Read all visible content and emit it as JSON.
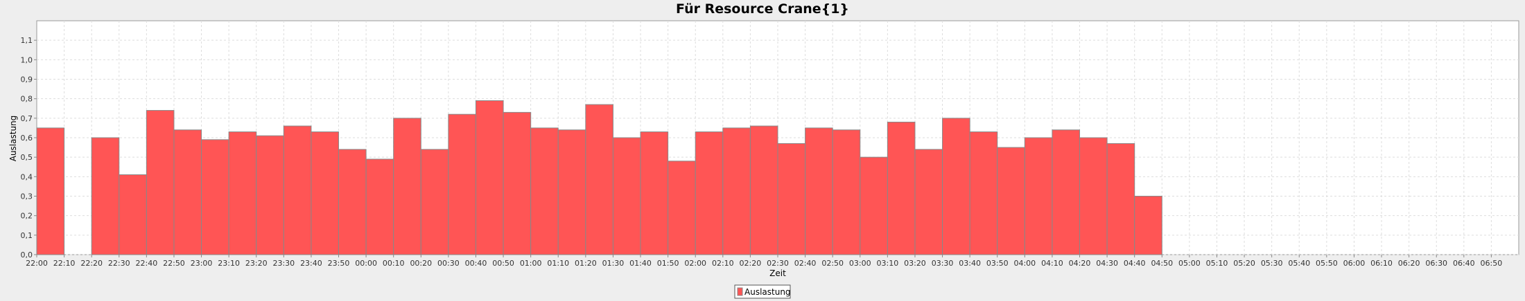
{
  "chart_data": {
    "type": "bar",
    "title": "Für Resource Crane{1}",
    "xlabel": "Zeit",
    "ylabel": "Auslastung",
    "ylim": [
      0,
      1.2
    ],
    "yticks": [
      "0,0",
      "0,1",
      "0,2",
      "0,3",
      "0,4",
      "0,5",
      "0,6",
      "0,7",
      "0,8",
      "0,9",
      "1,0",
      "1,1"
    ],
    "grid": true,
    "legend_placement": "bottom-center",
    "colors": {
      "bar": "#ff5555",
      "bar_edge": "#888888",
      "plot_bg": "#ffffff",
      "grid": "#dddddd",
      "page_bg": "#eeeeee"
    },
    "categories": [
      "22:00",
      "22:10",
      "22:20",
      "22:30",
      "22:40",
      "22:50",
      "23:00",
      "23:10",
      "23:20",
      "23:30",
      "23:40",
      "23:50",
      "00:00",
      "00:10",
      "00:20",
      "00:30",
      "00:40",
      "00:50",
      "01:00",
      "01:10",
      "01:20",
      "01:30",
      "01:40",
      "01:50",
      "02:00",
      "02:10",
      "02:20",
      "02:30",
      "02:40",
      "02:50",
      "03:00",
      "03:10",
      "03:20",
      "03:30",
      "03:40",
      "03:50",
      "04:00",
      "04:10",
      "04:20",
      "04:30",
      "04:40",
      "04:50",
      "05:00",
      "05:10",
      "05:20",
      "05:30",
      "05:40",
      "05:50",
      "06:00",
      "06:10",
      "06:20",
      "06:30",
      "06:40",
      "06:50"
    ],
    "series": [
      {
        "name": "Auslastung",
        "color": "#ff5555",
        "values": [
          0.65,
          null,
          0.6,
          0.41,
          0.74,
          0.64,
          0.59,
          0.63,
          0.61,
          0.66,
          0.63,
          0.54,
          0.49,
          0.7,
          0.54,
          0.72,
          0.79,
          0.73,
          0.65,
          0.64,
          0.77,
          0.6,
          0.63,
          0.48,
          0.63,
          0.65,
          0.66,
          0.57,
          0.65,
          0.64,
          0.5,
          0.68,
          0.54,
          0.7,
          0.63,
          0.55,
          0.6,
          0.64,
          0.6,
          0.57,
          0.3,
          null,
          null,
          null,
          null,
          null,
          null,
          null,
          null,
          null,
          null,
          null,
          null,
          null
        ]
      }
    ]
  }
}
